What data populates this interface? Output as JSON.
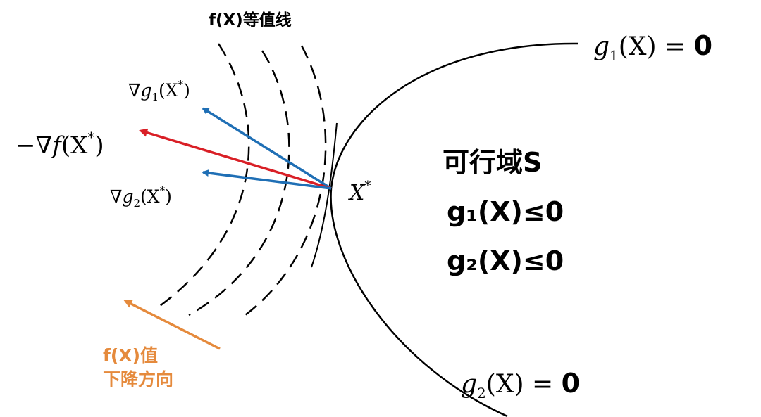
{
  "contour_title": "f(X)等值线",
  "grad_g1": {
    "prefix": "∇",
    "var": "g",
    "sub": "1",
    "arg": "(X",
    "sup": "*",
    "close": ")"
  },
  "neg_grad_f": {
    "prefix": "−∇",
    "var": "f",
    "arg": "(X",
    "sup": "*",
    "close": ")"
  },
  "grad_g2": {
    "prefix": "∇",
    "var": "g",
    "sub": "2",
    "arg": "(X",
    "sup": "*",
    "close": ")"
  },
  "point": {
    "var": "X",
    "sup": "*"
  },
  "constraint1": {
    "var": "g",
    "sub": "1",
    "arg": "(X) =",
    "rhs": "0"
  },
  "constraint2": {
    "var": "g",
    "sub": "2",
    "arg": "(X) =",
    "rhs": "0"
  },
  "feasible": {
    "title": "可行域S",
    "ineq1": "g₁(X)≤0",
    "ineq2": "g₂(X)≤0"
  },
  "descent": {
    "line1": "f(X)值",
    "line2": "下降方向"
  },
  "colors": {
    "grad_g": "#1f6fb5",
    "grad_f": "#d91f26",
    "descent": "#e58a3c",
    "line": "#000000"
  }
}
